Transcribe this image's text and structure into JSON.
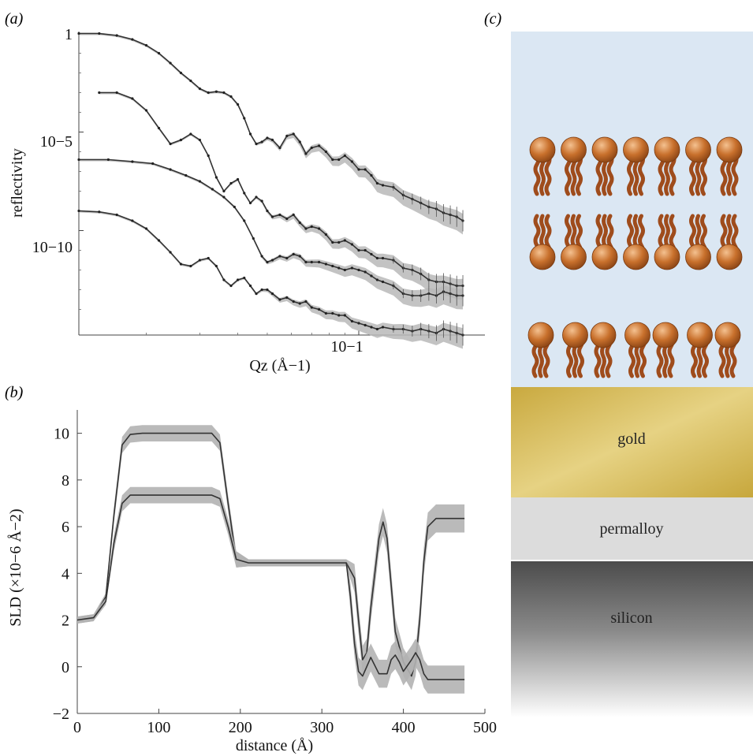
{
  "panels": {
    "a": "(a)",
    "b": "(b)",
    "c": "(c)"
  },
  "chart_data": [
    {
      "panel": "(a)",
      "type": "line",
      "xlabel": "Qz (Å−1)",
      "ylabel": "reflectivity",
      "xscale": "log",
      "yscale": "log",
      "xlim": [
        0.012,
        0.26
      ],
      "ylim_decades": [
        -15.3,
        0.1
      ],
      "y_tick_labels": [
        "1",
        "10−5",
        "10−10"
      ],
      "x_tick_labels": [
        "10−1"
      ],
      "band": "gray uncertainty band around each fit",
      "series_log10_y": [
        {
          "x": [
            0.012,
            0.014,
            0.016,
            0.018,
            0.02,
            0.022,
            0.024,
            0.026,
            0.028,
            0.03,
            0.032,
            0.034,
            0.036,
            0.038,
            0.04,
            0.042,
            0.044,
            0.046,
            0.048,
            0.05,
            0.052,
            0.055,
            0.058,
            0.061,
            0.064,
            0.067,
            0.07,
            0.074,
            0.078,
            0.082,
            0.086,
            0.09,
            0.095,
            0.1,
            0.105,
            0.11,
            0.115,
            0.12,
            0.13,
            0.14,
            0.15,
            0.16,
            0.17,
            0.18,
            0.19,
            0.2,
            0.21,
            0.22
          ],
          "y": [
            0,
            0,
            -0.1,
            -0.3,
            -0.6,
            -1.0,
            -1.5,
            -2.0,
            -2.4,
            -2.8,
            -3.0,
            -2.95,
            -3.0,
            -3.2,
            -3.6,
            -4.3,
            -5.1,
            -5.6,
            -5.5,
            -5.3,
            -5.4,
            -5.8,
            -5.2,
            -5.1,
            -5.5,
            -6.1,
            -5.8,
            -5.7,
            -6.0,
            -6.4,
            -6.4,
            -6.2,
            -6.5,
            -6.9,
            -6.9,
            -7.2,
            -7.6,
            -7.7,
            -7.8,
            -8.2,
            -8.4,
            -8.6,
            -8.8,
            -8.9,
            -9.1,
            -9.2,
            -9.3,
            -9.5
          ]
        },
        {
          "x": [
            0.014,
            0.016,
            0.018,
            0.02,
            0.022,
            0.024,
            0.026,
            0.028,
            0.03,
            0.032,
            0.034,
            0.036,
            0.038,
            0.04,
            0.042,
            0.044,
            0.046,
            0.048,
            0.05,
            0.052,
            0.055,
            0.058,
            0.061,
            0.064,
            0.067,
            0.07,
            0.074,
            0.078,
            0.082,
            0.086,
            0.09,
            0.095,
            0.1,
            0.105,
            0.11,
            0.115,
            0.12,
            0.13,
            0.14,
            0.15,
            0.16,
            0.17,
            0.18,
            0.19,
            0.2,
            0.21,
            0.22
          ],
          "y": [
            -3.0,
            -3.0,
            -3.3,
            -3.9,
            -4.8,
            -5.6,
            -5.4,
            -5.1,
            -5.4,
            -6.2,
            -7.3,
            -8.0,
            -7.6,
            -7.4,
            -8.1,
            -8.6,
            -8.3,
            -8.5,
            -9.0,
            -9.3,
            -9.2,
            -9.4,
            -9.2,
            -9.6,
            -9.9,
            -9.8,
            -9.9,
            -10.2,
            -10.6,
            -10.6,
            -10.5,
            -10.7,
            -11.0,
            -11.0,
            -11.2,
            -11.4,
            -11.4,
            -11.5,
            -11.9,
            -12.0,
            -12.2,
            -12.5,
            -12.6,
            -12.6,
            -12.7,
            -12.8,
            -12.8
          ]
        },
        {
          "x": [
            0.012,
            0.015,
            0.018,
            0.021,
            0.024,
            0.027,
            0.03,
            0.033,
            0.036,
            0.039,
            0.042,
            0.045,
            0.048,
            0.05,
            0.052,
            0.055,
            0.058,
            0.061,
            0.064,
            0.067,
            0.07,
            0.074,
            0.078,
            0.082,
            0.086,
            0.09,
            0.095,
            0.1,
            0.105,
            0.11,
            0.115,
            0.12,
            0.13,
            0.14,
            0.15,
            0.16,
            0.17,
            0.18,
            0.19,
            0.2,
            0.21,
            0.22
          ],
          "y": [
            -6.4,
            -6.4,
            -6.5,
            -6.6,
            -6.9,
            -7.2,
            -7.5,
            -7.9,
            -8.3,
            -8.8,
            -9.5,
            -10.4,
            -11.3,
            -11.6,
            -11.5,
            -11.3,
            -11.4,
            -11.2,
            -11.3,
            -11.6,
            -11.6,
            -11.6,
            -11.7,
            -11.8,
            -11.9,
            -12.0,
            -11.9,
            -12.0,
            -12.1,
            -12.3,
            -12.5,
            -12.6,
            -12.8,
            -13.2,
            -13.3,
            -13.3,
            -13.2,
            -13.3,
            -13.1,
            -13.2,
            -13.3,
            -13.3
          ]
        },
        {
          "x": [
            0.012,
            0.014,
            0.016,
            0.018,
            0.02,
            0.022,
            0.024,
            0.026,
            0.028,
            0.03,
            0.032,
            0.034,
            0.036,
            0.038,
            0.04,
            0.042,
            0.044,
            0.046,
            0.048,
            0.05,
            0.052,
            0.055,
            0.058,
            0.061,
            0.064,
            0.067,
            0.07,
            0.074,
            0.078,
            0.082,
            0.086,
            0.09,
            0.095,
            0.1,
            0.105,
            0.11,
            0.115,
            0.12,
            0.13,
            0.14,
            0.15,
            0.16,
            0.17,
            0.18,
            0.19,
            0.2,
            0.21,
            0.22
          ],
          "y": [
            -9.0,
            -9.05,
            -9.2,
            -9.5,
            -9.9,
            -10.5,
            -11.1,
            -11.7,
            -11.8,
            -11.5,
            -11.4,
            -11.8,
            -12.5,
            -12.8,
            -12.5,
            -12.4,
            -12.8,
            -13.2,
            -13.0,
            -13.0,
            -13.2,
            -13.5,
            -13.4,
            -13.6,
            -13.7,
            -13.6,
            -13.9,
            -14.0,
            -14.2,
            -14.2,
            -14.3,
            -14.3,
            -14.6,
            -14.7,
            -14.8,
            -14.9,
            -15.0,
            -14.9,
            -15.0,
            -15.0,
            -15.1,
            -15.0,
            -15.1,
            -15.2,
            -15.0,
            -15.1,
            -15.2,
            -15.3
          ]
        }
      ]
    },
    {
      "panel": "(b)",
      "type": "line",
      "xlabel": "distance (Å)",
      "ylabel": "SLD (×10−6 Å−2)",
      "xlim": [
        0,
        500
      ],
      "ylim": [
        -2,
        11
      ],
      "x_ticks": [
        0,
        100,
        200,
        300,
        400,
        500
      ],
      "y_ticks": [
        -2,
        0,
        2,
        4,
        6,
        8,
        10
      ],
      "series": [
        {
          "x": [
            0,
            20,
            35,
            45,
            55,
            65,
            80,
            100,
            120,
            150,
            165,
            175,
            185,
            195,
            210,
            250,
            300,
            330,
            340,
            345,
            350,
            355,
            360,
            370,
            375,
            380,
            390,
            400,
            410,
            415,
            420,
            425,
            430,
            440,
            450,
            475
          ],
          "y": [
            2.0,
            2.1,
            3.0,
            6.5,
            9.5,
            9.95,
            10.0,
            10.0,
            10.0,
            10.0,
            10.0,
            9.6,
            7.0,
            4.6,
            4.45,
            4.45,
            4.45,
            4.45,
            3.8,
            2.0,
            0.3,
            0.6,
            2.5,
            5.5,
            6.2,
            5.5,
            1.5,
            0.2,
            -0.4,
            0.2,
            2.0,
            4.5,
            6.0,
            6.35,
            6.35,
            6.35
          ]
        },
        {
          "x": [
            0,
            20,
            35,
            45,
            55,
            65,
            80,
            100,
            120,
            150,
            165,
            175,
            185,
            195,
            210,
            250,
            300,
            330,
            335,
            340,
            345,
            350,
            355,
            360,
            370,
            380,
            385,
            390,
            395,
            400,
            410,
            415,
            420,
            425,
            430,
            440,
            450,
            475
          ],
          "y": [
            2.0,
            2.1,
            2.8,
            5.3,
            7.0,
            7.35,
            7.35,
            7.35,
            7.35,
            7.35,
            7.35,
            7.2,
            6.0,
            4.6,
            4.45,
            4.45,
            4.45,
            4.45,
            3.0,
            1.0,
            -0.2,
            -0.4,
            0.0,
            0.4,
            -0.3,
            -0.3,
            0.3,
            0.5,
            0.2,
            -0.2,
            0.3,
            0.6,
            0.3,
            -0.3,
            -0.55,
            -0.55,
            -0.55,
            -0.55
          ]
        }
      ]
    }
  ],
  "schematic": {
    "layers": [
      {
        "label": "gold"
      },
      {
        "label": "permalloy"
      },
      {
        "label": "silicon"
      }
    ],
    "colors": {
      "water": "#dbe7f3",
      "gold": "#d7bd5b",
      "permalloy": "#dcdcdc",
      "lipid_head": "#c8702c",
      "lipid_tail": "#9f4c1c"
    },
    "lipid_count_per_row": 7
  }
}
